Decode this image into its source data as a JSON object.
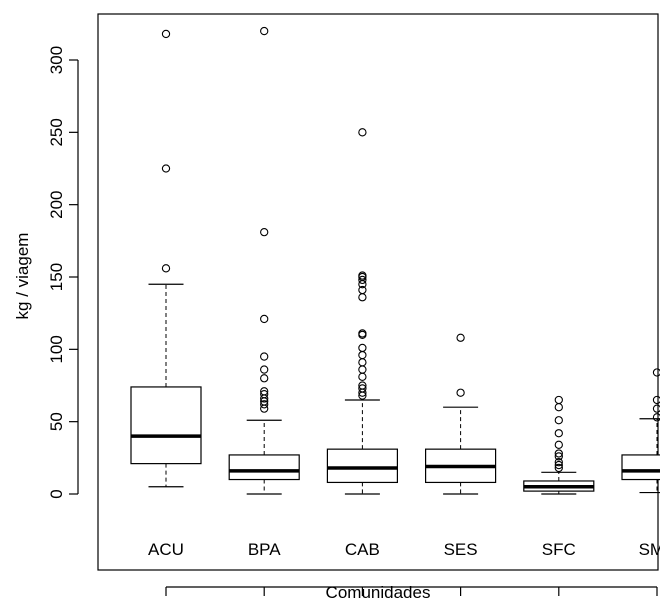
{
  "chart_data": {
    "type": "boxplot",
    "title": "",
    "xlabel": "Comunidades",
    "ylabel": "kg / viagem",
    "ylim": [
      -12,
      330
    ],
    "yticks": [
      0,
      50,
      100,
      150,
      200,
      250,
      300
    ],
    "categories": [
      "ACU",
      "BPA",
      "CAB",
      "SES",
      "SFC",
      "SMA"
    ],
    "boxes": [
      {
        "name": "ACU",
        "whisker_low": 5,
        "q1": 21,
        "median": 40,
        "q3": 74,
        "whisker_high": 145,
        "outliers": [
          156,
          225,
          318
        ]
      },
      {
        "name": "BPA",
        "whisker_low": 0,
        "q1": 10,
        "median": 16,
        "q3": 27,
        "whisker_high": 51,
        "outliers": [
          59,
          62,
          64,
          66,
          69,
          71,
          80,
          86,
          95,
          121,
          181,
          320
        ]
      },
      {
        "name": "CAB",
        "whisker_low": 0,
        "q1": 8,
        "median": 18,
        "q3": 31,
        "whisker_high": 65,
        "outliers": [
          68,
          70,
          73,
          75,
          81,
          86,
          91,
          96,
          101,
          110,
          111,
          136,
          141,
          145,
          148,
          150,
          151,
          250
        ]
      },
      {
        "name": "SES",
        "whisker_low": 0,
        "q1": 8,
        "median": 19,
        "q3": 31,
        "whisker_high": 60,
        "outliers": [
          70,
          108
        ]
      },
      {
        "name": "SFC",
        "whisker_low": 0,
        "q1": 2,
        "median": 5,
        "q3": 9,
        "whisker_high": 15,
        "outliers": [
          18,
          20,
          22,
          26,
          28,
          34,
          42,
          51,
          60,
          65
        ]
      },
      {
        "name": "SMA",
        "whisker_low": 1,
        "q1": 10,
        "median": 16,
        "q3": 27,
        "whisker_high": 52,
        "outliers": [
          53,
          59,
          65,
          84
        ]
      }
    ],
    "colors": {
      "box_fill": "#ffffff",
      "stroke": "#000000"
    }
  }
}
